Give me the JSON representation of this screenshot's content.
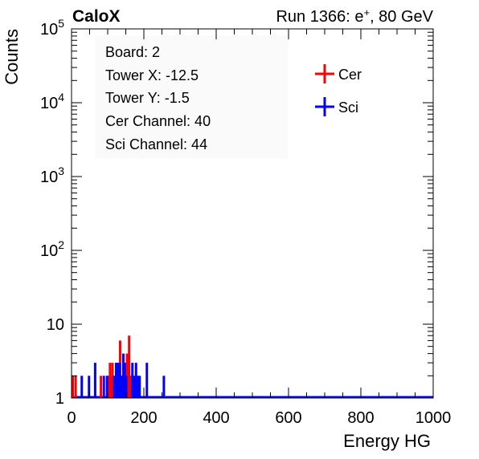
{
  "header": {
    "left": "CaloX",
    "right_prefix": "Run 1366: e",
    "right_sup": "+",
    "right_suffix": ", 80 GeV"
  },
  "info_box": [
    "Board: 2",
    "Tower X: -12.5",
    "Tower Y: -1.5",
    "Cer Channel: 40",
    "Sci Channel: 44"
  ],
  "chart_data": {
    "type": "histogram",
    "xlabel": "Energy HG",
    "ylabel": "Counts",
    "xlim": [
      0,
      1000
    ],
    "ylim": [
      1,
      100000
    ],
    "y_scale": "log",
    "grid": false,
    "legend_position": "top-right",
    "x_ticks": [
      "0",
      "200",
      "400",
      "600",
      "800",
      "1000"
    ],
    "y_ticks": [
      {
        "value": 1,
        "base": "1",
        "exp": ""
      },
      {
        "value": 10,
        "base": "10",
        "exp": ""
      },
      {
        "value": 100,
        "base": "10",
        "exp": "2"
      },
      {
        "value": 1000,
        "base": "10",
        "exp": "3"
      },
      {
        "value": 10000,
        "base": "10",
        "exp": "4"
      },
      {
        "value": 100000,
        "base": "10",
        "exp": "5"
      }
    ],
    "series": [
      {
        "name": "Cer",
        "color": "#ff0000",
        "bins": [
          {
            "x": 0,
            "y": 2
          },
          {
            "x": 8,
            "y": 2
          },
          {
            "x": 78,
            "y": 2
          },
          {
            "x": 95,
            "y": 2
          },
          {
            "x": 100,
            "y": 2
          },
          {
            "x": 103,
            "y": 3
          },
          {
            "x": 106,
            "y": 2
          },
          {
            "x": 110,
            "y": 3
          },
          {
            "x": 115,
            "y": 2
          },
          {
            "x": 120,
            "y": 2
          },
          {
            "x": 125,
            "y": 3
          },
          {
            "x": 128,
            "y": 2
          },
          {
            "x": 131,
            "y": 6
          },
          {
            "x": 137,
            "y": 2
          },
          {
            "x": 142,
            "y": 3
          },
          {
            "x": 150,
            "y": 4
          },
          {
            "x": 153,
            "y": 2
          },
          {
            "x": 156,
            "y": 7
          },
          {
            "x": 160,
            "y": 2
          },
          {
            "x": 163,
            "y": 2
          }
        ]
      },
      {
        "name": "Sci",
        "color": "#0000ff",
        "bins": [
          {
            "x": 25,
            "y": 2
          },
          {
            "x": 45,
            "y": 2
          },
          {
            "x": 62,
            "y": 3
          },
          {
            "x": 86,
            "y": 2
          },
          {
            "x": 95,
            "y": 2
          },
          {
            "x": 115,
            "y": 2
          },
          {
            "x": 120,
            "y": 3
          },
          {
            "x": 125,
            "y": 3
          },
          {
            "x": 130,
            "y": 3
          },
          {
            "x": 135,
            "y": 2
          },
          {
            "x": 140,
            "y": 4
          },
          {
            "x": 144,
            "y": 3
          },
          {
            "x": 148,
            "y": 2
          },
          {
            "x": 165,
            "y": 3
          },
          {
            "x": 170,
            "y": 2
          },
          {
            "x": 175,
            "y": 3
          },
          {
            "x": 180,
            "y": 2
          },
          {
            "x": 185,
            "y": 2
          },
          {
            "x": 205,
            "y": 3
          },
          {
            "x": 252,
            "y": 2
          }
        ]
      }
    ]
  }
}
